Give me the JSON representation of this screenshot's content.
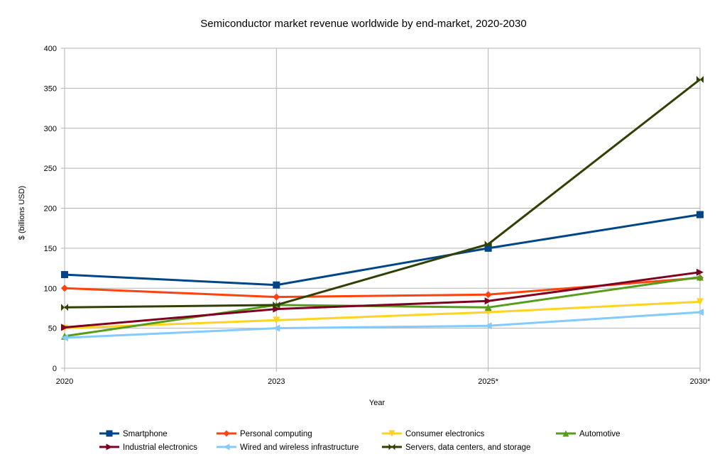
{
  "chart_data": {
    "type": "line",
    "title": "Semiconductor market revenue worldwide by end-market, 2020-2030",
    "xlabel": "Year",
    "ylabel": "$ (billions USD)",
    "categories": [
      "2020",
      "2023",
      "2025*",
      "2030*"
    ],
    "ylim": [
      0,
      400
    ],
    "yticks": [
      "0",
      "50",
      "100",
      "150",
      "200",
      "250",
      "300",
      "350",
      "400"
    ],
    "grid": true,
    "legend": "bottom",
    "series": [
      {
        "name": "Smartphone",
        "color": "#004586",
        "marker": "square",
        "values": [
          117,
          104,
          150,
          192
        ]
      },
      {
        "name": "Personal computing",
        "color": "#ff420e",
        "marker": "diamond",
        "values": [
          100,
          89,
          92,
          113
        ]
      },
      {
        "name": "Consumer electronics",
        "color": "#ffd320",
        "marker": "triangle-down",
        "values": [
          50,
          60,
          70,
          83
        ]
      },
      {
        "name": "Automotive",
        "color": "#579d1c",
        "marker": "triangle-up",
        "values": [
          40,
          79,
          76,
          114
        ]
      },
      {
        "name": "Industrial electronics",
        "color": "#7e0021",
        "marker": "triangle-right",
        "values": [
          51,
          74,
          84,
          120
        ]
      },
      {
        "name": "Wired and wireless infrastructure",
        "color": "#83caff",
        "marker": "triangle-left",
        "values": [
          38,
          50,
          53,
          70
        ]
      },
      {
        "name": "Servers, data centers, and storage",
        "color": "#314004",
        "marker": "bowtie",
        "values": [
          76,
          79,
          155,
          361
        ]
      }
    ]
  }
}
